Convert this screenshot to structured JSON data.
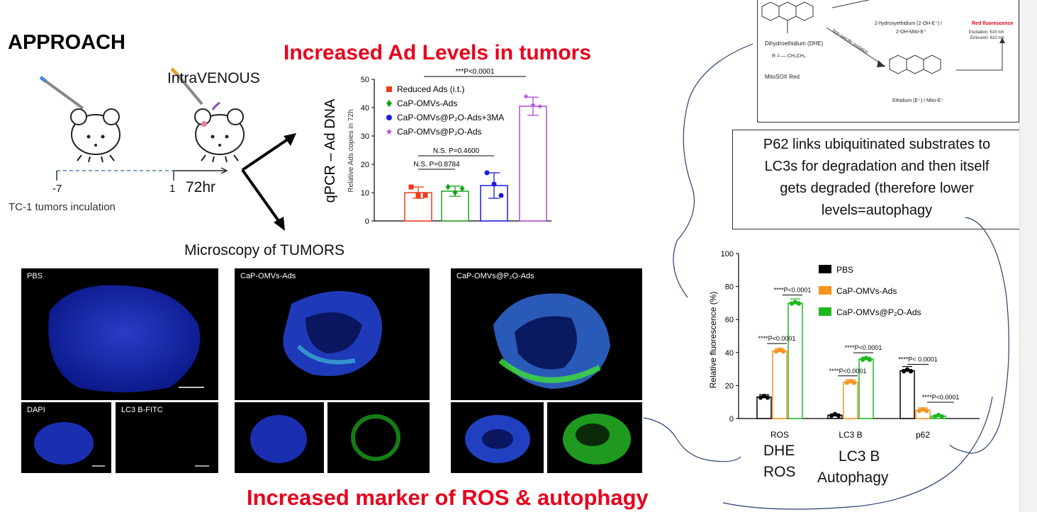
{
  "slide": {
    "approach": "APPROACH",
    "title_ad": "Increased Ad Levels in tumors",
    "title_ros": "Increased marker of ROS & autophagy",
    "intravenous": "IntraVENOUS",
    "timeline_start": "-7",
    "timeline_end": "1",
    "timeline_duration": "72hr",
    "timeline_caption": "TC-1 tumors inculation",
    "microscopy_label": "Microscopy of TUMORS",
    "callout_p62": "P62 links ubiquitinated substrates to LC3s for degradation and then itself gets degraded (therefore lower levels=autophagy",
    "dhe_ros": [
      "DHE",
      "ROS"
    ],
    "lc3b_autophagy": [
      "LC3 B",
      "Autophagy"
    ]
  },
  "micro_panels": {
    "pbs": "PBS",
    "dapi": "DAPI",
    "lc3b_fitc": "LC3 B-FITC",
    "cap_omvs": "CaP-OMVs-Ads",
    "cap_omvs_p2o": "CaP-OMVs@P₂O-Ads"
  },
  "mechanism": {
    "dhe": "Dihydroethidium (DHE)",
    "dhe_r": "R = — CH₂CH₃",
    "mitosox": "MitoSOX Red",
    "hydroxy": "2-hydroxyethidium (2-OH-E⁺) /",
    "hydroxy2": "2-OH-Mito-E⁺",
    "ethidium": "Ethidium (E⁺) / Mito-E⁺",
    "nonspecific": "Non-specific oxidation",
    "red_fluor": "Red fluorescence",
    "excitation": "Excitation: 510 nm",
    "emission": "Emission: 610 nm"
  },
  "chart_data": [
    {
      "type": "bar",
      "ylabel": "qPCR – Ad DNA",
      "ylabel_sub": "Relative Ads copies in 72h",
      "ylim": [
        0,
        50
      ],
      "yticks": [
        0,
        10,
        20,
        30,
        40,
        50
      ],
      "series": [
        {
          "name": "Reduced Ads (i.t.)",
          "value": 10,
          "err": 2,
          "color": "#f03a1a",
          "marker": "square",
          "points": [
            12,
            9,
            9
          ]
        },
        {
          "name": "CaP-OMVs-Ads",
          "value": 10.5,
          "err": 1.8,
          "color": "#1aa31a",
          "marker": "diamond",
          "points": [
            12,
            10,
            11.5
          ]
        },
        {
          "name": "CaP-OMVs@P₂O-Ads+3MA",
          "value": 12.5,
          "err": 4.5,
          "color": "#1a1ae0",
          "marker": "circle",
          "points": [
            17,
            13,
            9
          ]
        },
        {
          "name": "CaP-OMVs@P₂O-Ads",
          "value": 40.5,
          "err": 3.2,
          "color": "#b04ad8",
          "marker": "star",
          "points": [
            44,
            41,
            40.5
          ]
        }
      ],
      "annotations": [
        "N.S. P=0.8784",
        "N.S. P=0.4600",
        "***P<0.0001"
      ]
    },
    {
      "type": "bar",
      "ylabel": "Relative fluorescence (%)",
      "ylim": [
        0,
        100
      ],
      "yticks": [
        0,
        20,
        40,
        60,
        80,
        100
      ],
      "categories": [
        "ROS",
        "LC3 B",
        "p62"
      ],
      "series": [
        {
          "name": "PBS",
          "color": "#000000",
          "values": [
            13,
            2,
            29
          ],
          "errs": [
            1.5,
            0.8,
            2.5
          ]
        },
        {
          "name": "CaP-OMVs-Ads",
          "color": "#f7931e",
          "values": [
            41,
            22,
            5
          ],
          "errs": [
            1.5,
            1.5,
            1.5
          ]
        },
        {
          "name": "CaP-OMVs@P₂O-Ads",
          "color": "#1fb81f",
          "values": [
            70,
            36,
            1.5
          ],
          "errs": [
            2.5,
            1.2,
            0.5
          ]
        }
      ],
      "annotations": [
        "****P<0.0001",
        "****P<0.0001",
        "****P<0.0001",
        "****P<0.0001",
        "****P< 0.0001",
        "****P<0.0001"
      ]
    }
  ]
}
